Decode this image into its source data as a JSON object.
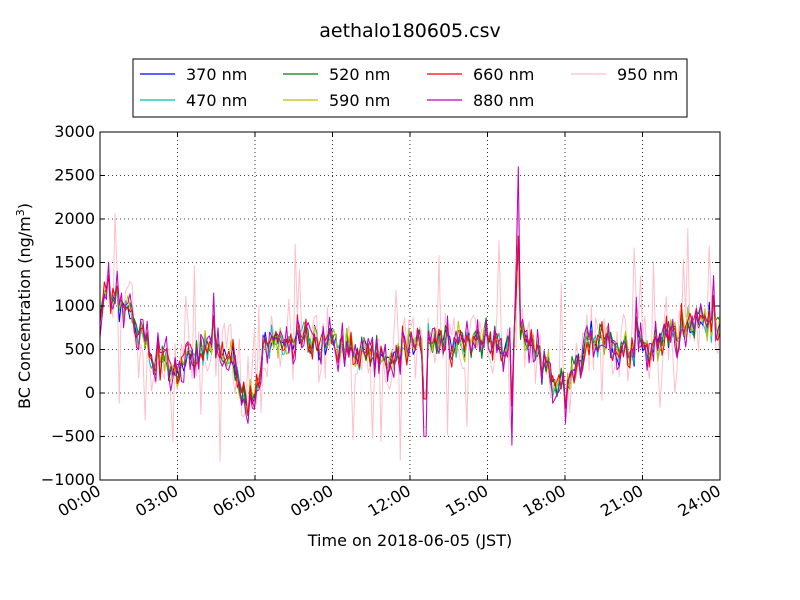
{
  "chart_data": {
    "type": "line",
    "title": "aethalo180605.csv",
    "xlabel": "Time on 2018-06-05 (JST)",
    "ylabel": "BC Concentration (ng/m3)",
    "ylabel_main": "BC Concentration (ng/m",
    "ylabel_sup": "3",
    "ylabel_tail": ")",
    "xlim": [
      "00:00",
      "24:00"
    ],
    "ylim": [
      -1000,
      3000
    ],
    "x_ticks": [
      "00:00",
      "03:00",
      "06:00",
      "09:00",
      "12:00",
      "15:00",
      "18:00",
      "21:00",
      "24:00"
    ],
    "y_ticks": [
      "3000",
      "2500",
      "2000",
      "1500",
      "1000",
      "500",
      "0",
      "−500",
      "−1000"
    ],
    "grid": true,
    "legend_position": "top",
    "series": [
      {
        "name": "370 nm",
        "color": "#0000ff"
      },
      {
        "name": "470 nm",
        "color": "#00bfbf"
      },
      {
        "name": "520 nm",
        "color": "#008000"
      },
      {
        "name": "590 nm",
        "color": "#bfbf00"
      },
      {
        "name": "660 nm",
        "color": "#ff0000"
      },
      {
        "name": "880 nm",
        "color": "#bf00bf"
      },
      {
        "name": "950 nm",
        "color": "#ffc0cb"
      }
    ],
    "anchors": [
      {
        "x": "00:00",
        "y": 900
      },
      {
        "x": "00:15",
        "y": 1150
      },
      {
        "x": "00:30",
        "y": 1100
      },
      {
        "x": "00:45",
        "y": 900
      },
      {
        "x": "01:00",
        "y": 1000
      },
      {
        "x": "01:30",
        "y": 700
      },
      {
        "x": "02:00",
        "y": 450
      },
      {
        "x": "02:30",
        "y": 380
      },
      {
        "x": "03:00",
        "y": 280
      },
      {
        "x": "03:30",
        "y": 350
      },
      {
        "x": "04:00",
        "y": 450
      },
      {
        "x": "04:30",
        "y": 500
      },
      {
        "x": "05:00",
        "y": 450
      },
      {
        "x": "05:15",
        "y": 300
      },
      {
        "x": "05:30",
        "y": 50
      },
      {
        "x": "05:45",
        "y": -150
      },
      {
        "x": "06:00",
        "y": 0
      },
      {
        "x": "06:30",
        "y": 600
      },
      {
        "x": "07:00",
        "y": 650
      },
      {
        "x": "08:00",
        "y": 600
      },
      {
        "x": "09:00",
        "y": 550
      },
      {
        "x": "10:00",
        "y": 500
      },
      {
        "x": "11:00",
        "y": 420
      },
      {
        "x": "12:00",
        "y": 550
      },
      {
        "x": "13:00",
        "y": 600
      },
      {
        "x": "14:00",
        "y": 550
      },
      {
        "x": "15:00",
        "y": 650
      },
      {
        "x": "15:30",
        "y": 450
      },
      {
        "x": "16:00",
        "y": 550
      },
      {
        "x": "16:30",
        "y": 700
      },
      {
        "x": "17:00",
        "y": 400
      },
      {
        "x": "17:30",
        "y": 150
      },
      {
        "x": "18:00",
        "y": 80
      },
      {
        "x": "18:30",
        "y": 300
      },
      {
        "x": "19:00",
        "y": 650
      },
      {
        "x": "19:30",
        "y": 600
      },
      {
        "x": "20:00",
        "y": 500
      },
      {
        "x": "21:00",
        "y": 550
      },
      {
        "x": "22:00",
        "y": 650
      },
      {
        "x": "23:00",
        "y": 800
      },
      {
        "x": "23:30",
        "y": 850
      },
      {
        "x": "24:00",
        "y": 700
      }
    ],
    "spikes": [
      {
        "x": "00:20",
        "y": 1500
      },
      {
        "x": "00:40",
        "y": 1400
      },
      {
        "x": "00:50",
        "y": 1150
      },
      {
        "x": "04:25",
        "y": 1150
      },
      {
        "x": "05:45",
        "y": -350
      },
      {
        "x": "16:10",
        "y": 2600
      },
      {
        "x": "16:05",
        "y": 1500
      },
      {
        "x": "15:55",
        "y": -600
      },
      {
        "x": "12:35",
        "y": -500
      },
      {
        "x": "18:00",
        "y": -350
      },
      {
        "x": "20:45",
        "y": 1100
      },
      {
        "x": "23:45",
        "y": 1350
      }
    ]
  }
}
